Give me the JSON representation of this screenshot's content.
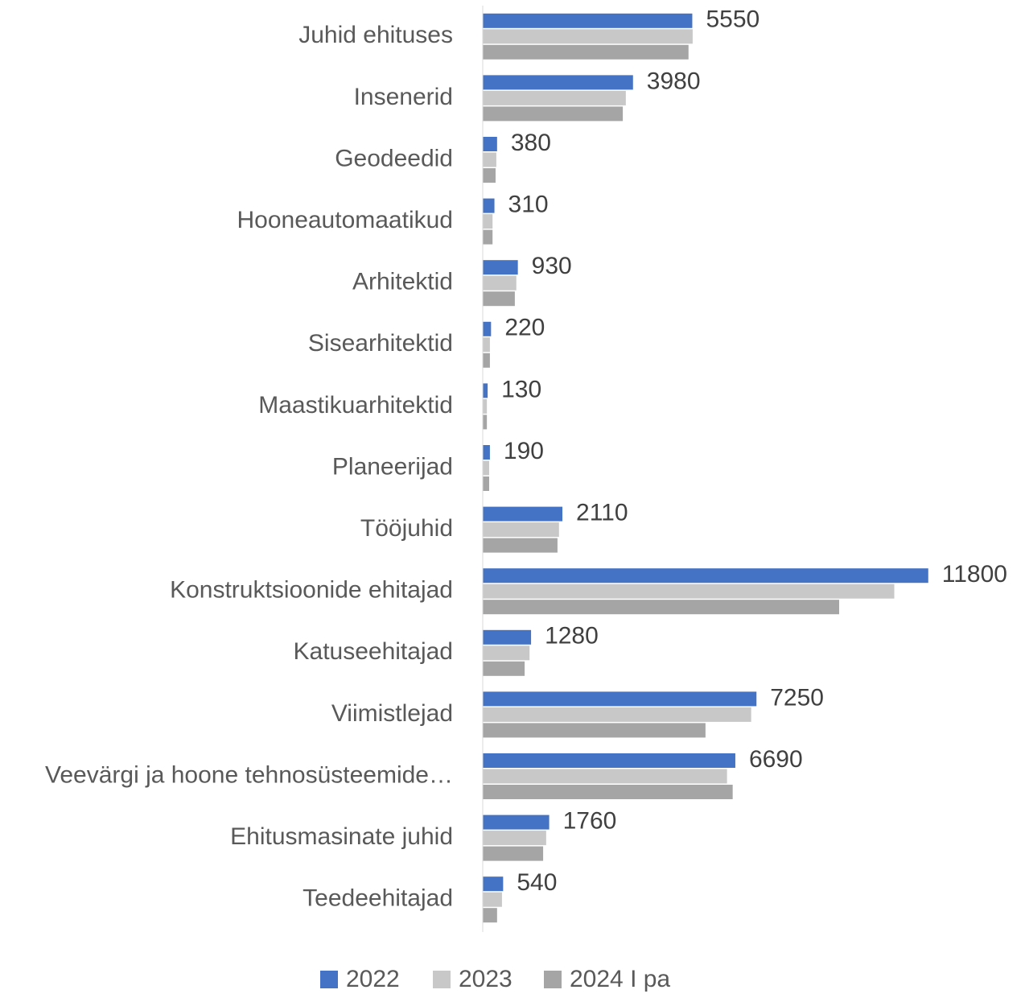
{
  "chart_data": {
    "type": "hbar",
    "categories": [
      "Juhid ehituses",
      "Insenerid",
      "Geodeedid",
      "Hooneautomaatikud",
      "Arhitektid",
      "Sisearhitektid",
      "Maastikuarhitektid",
      "Planeerijad",
      "Tööjuhid",
      "Konstruktsioonide ehitajad",
      "Katuseehitajad",
      "Viimistlejad",
      "Veevärgi ja hoone tehnosüsteemide…",
      "Ehitusmasinate juhid",
      "Teedeehitajad"
    ],
    "series": [
      {
        "name": "2022",
        "color": "#4472c4",
        "values": [
          5550,
          3980,
          380,
          310,
          930,
          220,
          130,
          190,
          2110,
          11800,
          1280,
          7250,
          6690,
          1760,
          540
        ],
        "labels": true
      },
      {
        "name": "2023",
        "color": "#c8c8c8",
        "values": [
          5560,
          3790,
          360,
          260,
          890,
          190,
          110,
          170,
          2020,
          10900,
          1240,
          7110,
          6470,
          1680,
          510
        ]
      },
      {
        "name": "2024 I pa",
        "color": "#a5a5a5",
        "values": [
          5450,
          3710,
          340,
          260,
          850,
          190,
          110,
          170,
          1980,
          9440,
          1110,
          5900,
          6620,
          1600,
          380
        ]
      }
    ],
    "xlim": [
      0,
      14000
    ],
    "legend": "bottom"
  }
}
